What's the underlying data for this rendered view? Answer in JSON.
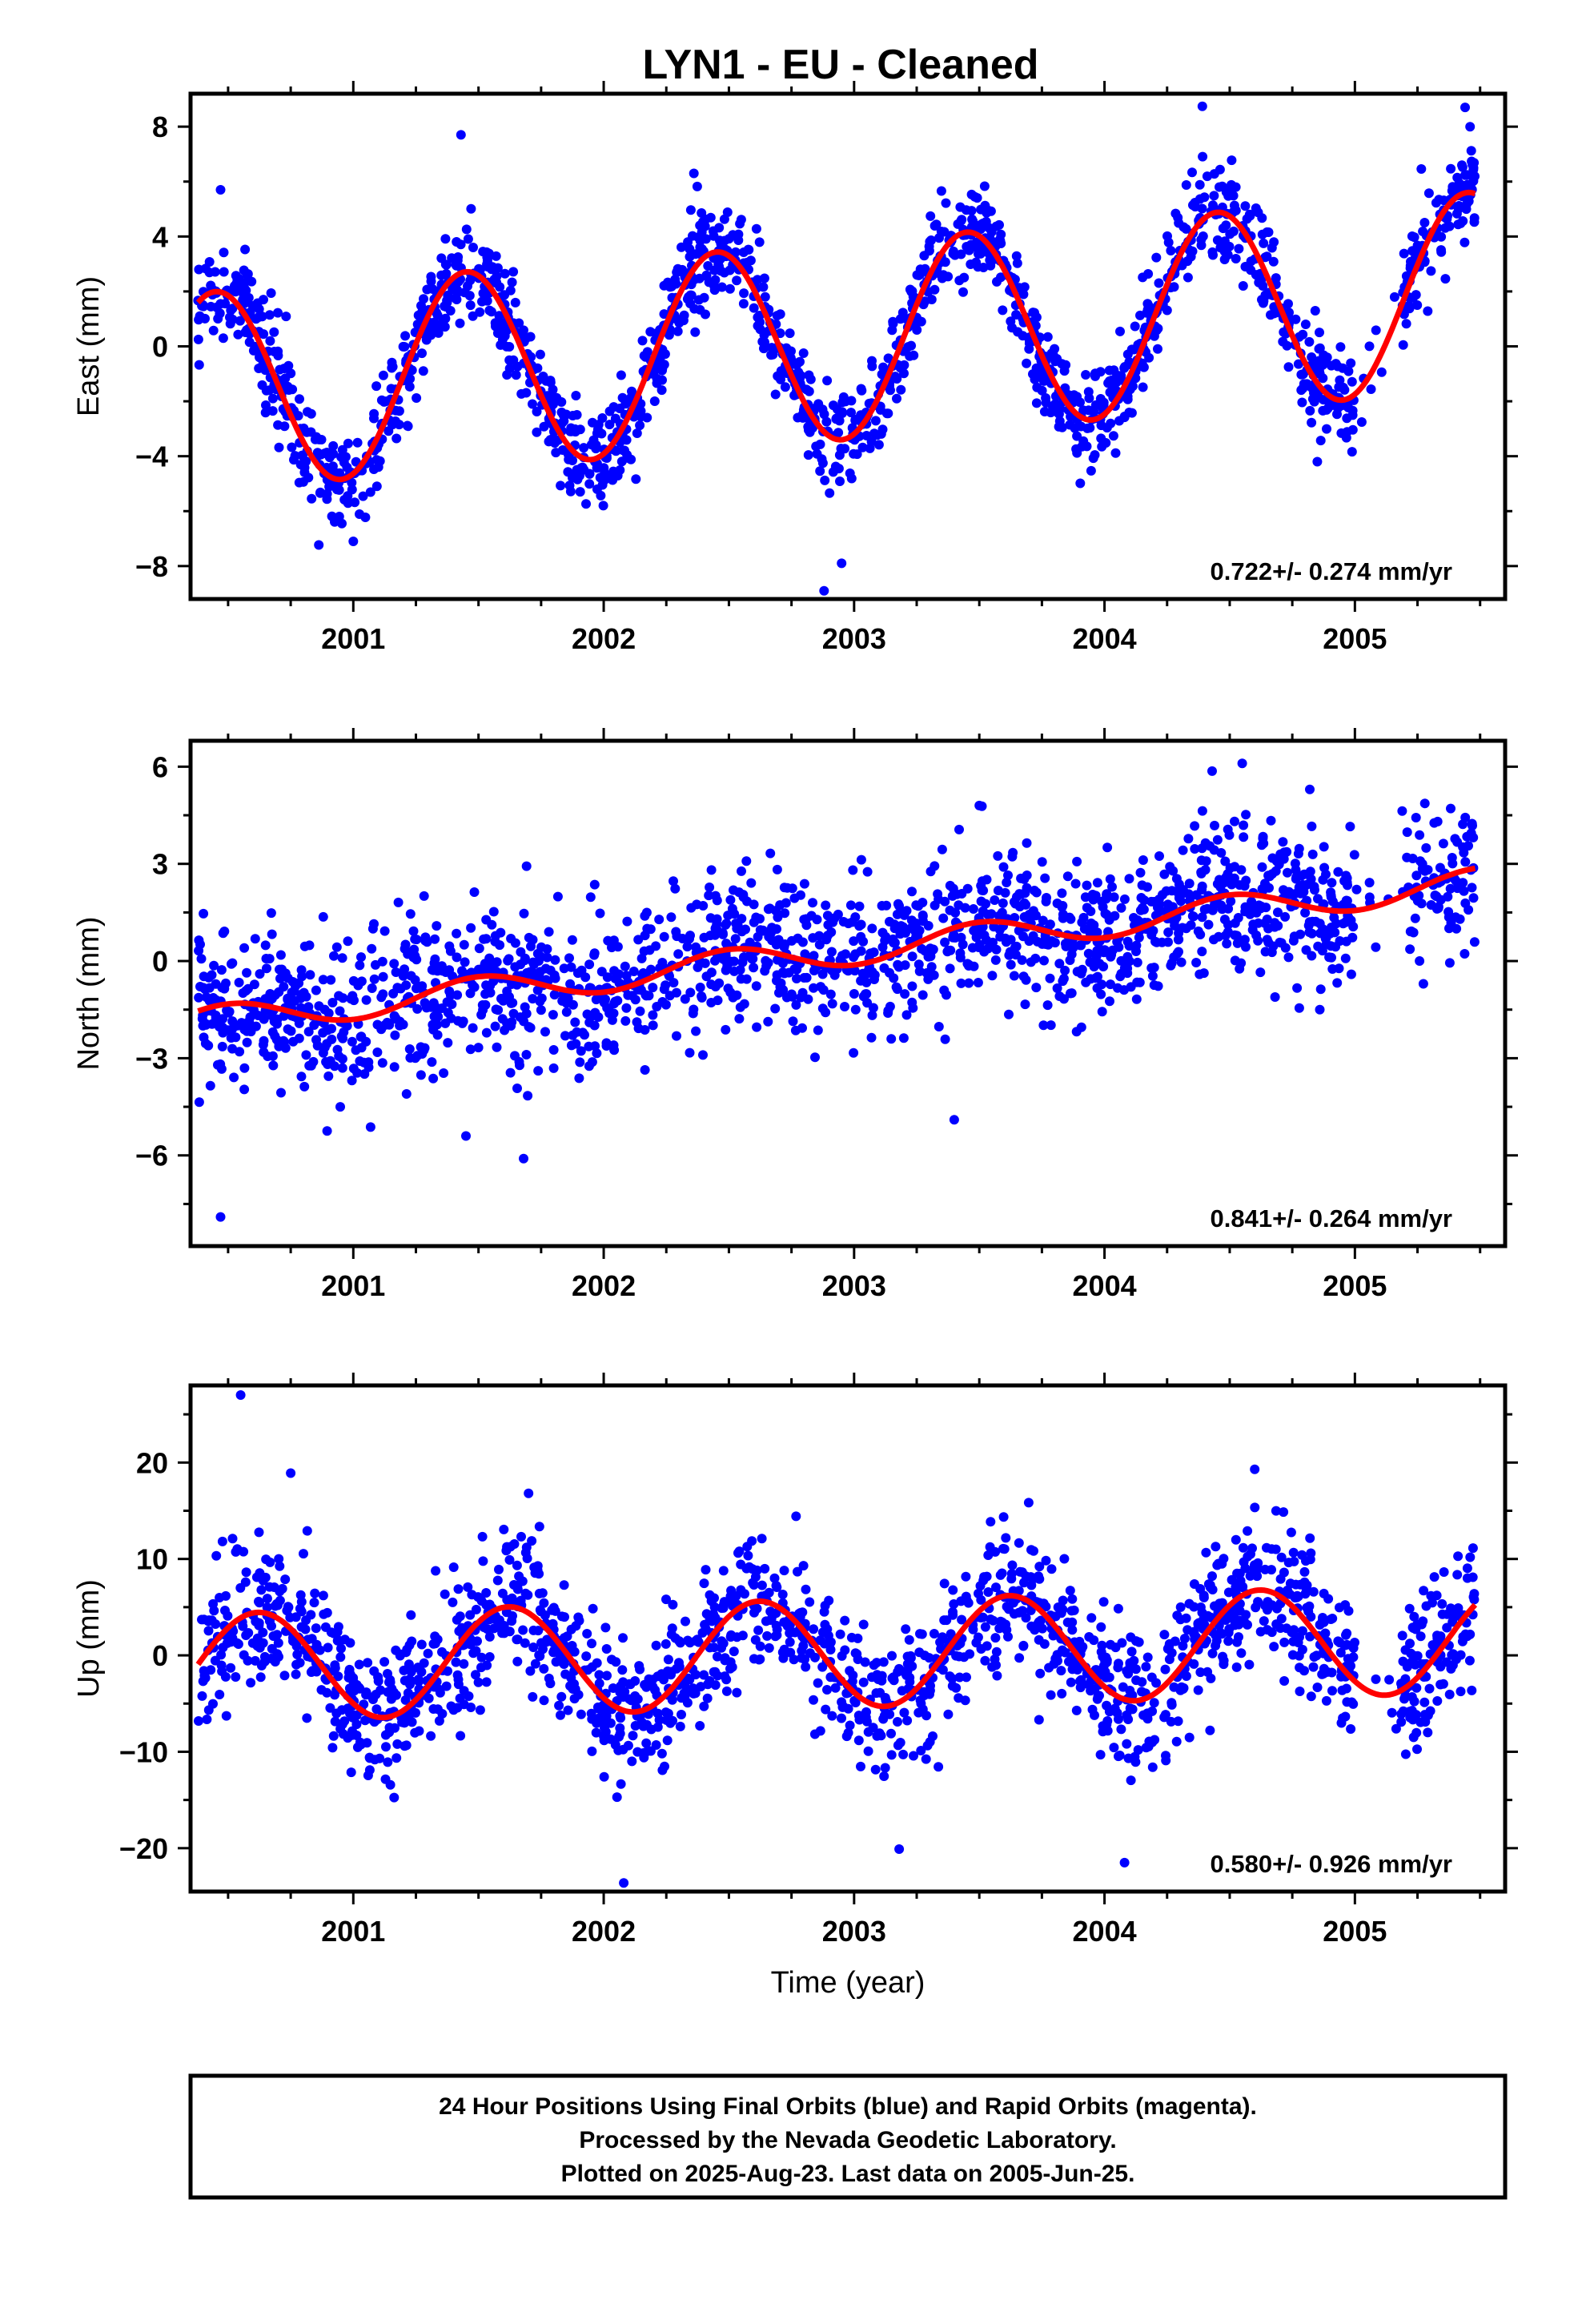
{
  "title": "LYN1  - EU - Cleaned",
  "colors": {
    "final_orbits": "#0000ff",
    "rapid_orbits": "#ff00ff",
    "model": "#ff0000",
    "frame": "#000000"
  },
  "chart_data": [
    {
      "type": "scatter",
      "name": "east",
      "ylabel": "East (mm)",
      "xlabel": "",
      "xlim": [
        2000.35,
        2005.6
      ],
      "ylim": [
        -9.2,
        9.2
      ],
      "yticks": [
        -8,
        -4,
        0,
        4,
        8
      ],
      "xticks": [
        2001,
        2002,
        2003,
        2004,
        2005
      ],
      "rate_label": "0.722+/- 0.274 mm/yr",
      "model": {
        "offset": -1.68,
        "rate": 0.722,
        "ref_year": 2000.35,
        "amplitude": 3.6,
        "peak_phase": 0.45
      },
      "data_range": [
        2000.38,
        2005.48
      ],
      "gaps": [
        [
          2005.0,
          2005.18
        ]
      ],
      "scatter_sigma": 0.9,
      "n_points": 1750,
      "seed": 11,
      "outliers": [
        {
          "x": 2000.47,
          "y": 5.7
        },
        {
          "x": 2001.43,
          "y": 7.7
        },
        {
          "x": 2002.36,
          "y": 6.3
        },
        {
          "x": 2002.88,
          "y": -8.9
        },
        {
          "x": 2002.95,
          "y": -7.9
        },
        {
          "x": 2005.44,
          "y": 8.7
        },
        {
          "x": 2005.46,
          "y": 8.0
        },
        {
          "x": 2004.85,
          "y": -4.2
        },
        {
          "x": 2001.0,
          "y": -7.1
        }
      ]
    },
    {
      "type": "scatter",
      "name": "north",
      "ylabel": "North (mm)",
      "xlabel": "",
      "xlim": [
        2000.35,
        2005.6
      ],
      "ylim": [
        -8.8,
        6.8
      ],
      "yticks": [
        -6,
        -3,
        0,
        3,
        6
      ],
      "xticks": [
        2001,
        2002,
        2003,
        2004,
        2005
      ],
      "rate_label": "0.841+/- 0.264 mm/yr",
      "model": {
        "offset": -1.9,
        "rate": 0.841,
        "ref_year": 2000.35,
        "amplitude": 0.45,
        "peak_phase": 0.5
      },
      "data_range": [
        2000.38,
        2005.48
      ],
      "gaps": [
        [
          2005.0,
          2005.18
        ]
      ],
      "scatter_sigma": 1.15,
      "n_points": 1750,
      "seed": 23,
      "outliers": [
        {
          "x": 2000.47,
          "y": -7.9
        },
        {
          "x": 2001.68,
          "y": -6.1
        },
        {
          "x": 2001.45,
          "y": -5.4
        },
        {
          "x": 2004.55,
          "y": 6.1
        },
        {
          "x": 2004.82,
          "y": 5.3
        },
        {
          "x": 2003.4,
          "y": -4.9
        },
        {
          "x": 2003.5,
          "y": 4.8
        }
      ]
    },
    {
      "type": "scatter",
      "name": "up",
      "ylabel": "Up (mm)",
      "xlabel": "Time (year)",
      "xlim": [
        2000.35,
        2005.6
      ],
      "ylim": [
        -24.5,
        28.0
      ],
      "yticks": [
        -20,
        -10,
        0,
        10,
        20
      ],
      "xticks": [
        2001,
        2002,
        2003,
        2004,
        2005
      ],
      "rate_label": "0.580+/- 0.926 mm/yr",
      "model": {
        "offset": -1.3,
        "rate": 0.58,
        "ref_year": 2000.35,
        "amplitude": 5.6,
        "peak_phase": 0.62
      },
      "data_range": [
        2000.38,
        2005.48
      ],
      "gaps": [
        [
          2005.0,
          2005.18
        ]
      ],
      "scatter_sigma": 3.6,
      "n_points": 1750,
      "seed": 37,
      "outliers": [
        {
          "x": 2000.55,
          "y": 27.0
        },
        {
          "x": 2000.75,
          "y": 18.9
        },
        {
          "x": 2002.08,
          "y": -23.6
        },
        {
          "x": 2004.08,
          "y": -21.5
        },
        {
          "x": 2001.7,
          "y": 16.8
        },
        {
          "x": 2004.6,
          "y": 19.3
        },
        {
          "x": 2003.18,
          "y": -20.1
        }
      ]
    }
  ],
  "footer": {
    "line1": "24 Hour Positions Using Final Orbits (blue) and Rapid Orbits (magenta).",
    "line2": "Processed by the Nevada Geodetic Laboratory.",
    "line3": "Plotted on 2025-Aug-23. Last data on 2005-Jun-25."
  }
}
